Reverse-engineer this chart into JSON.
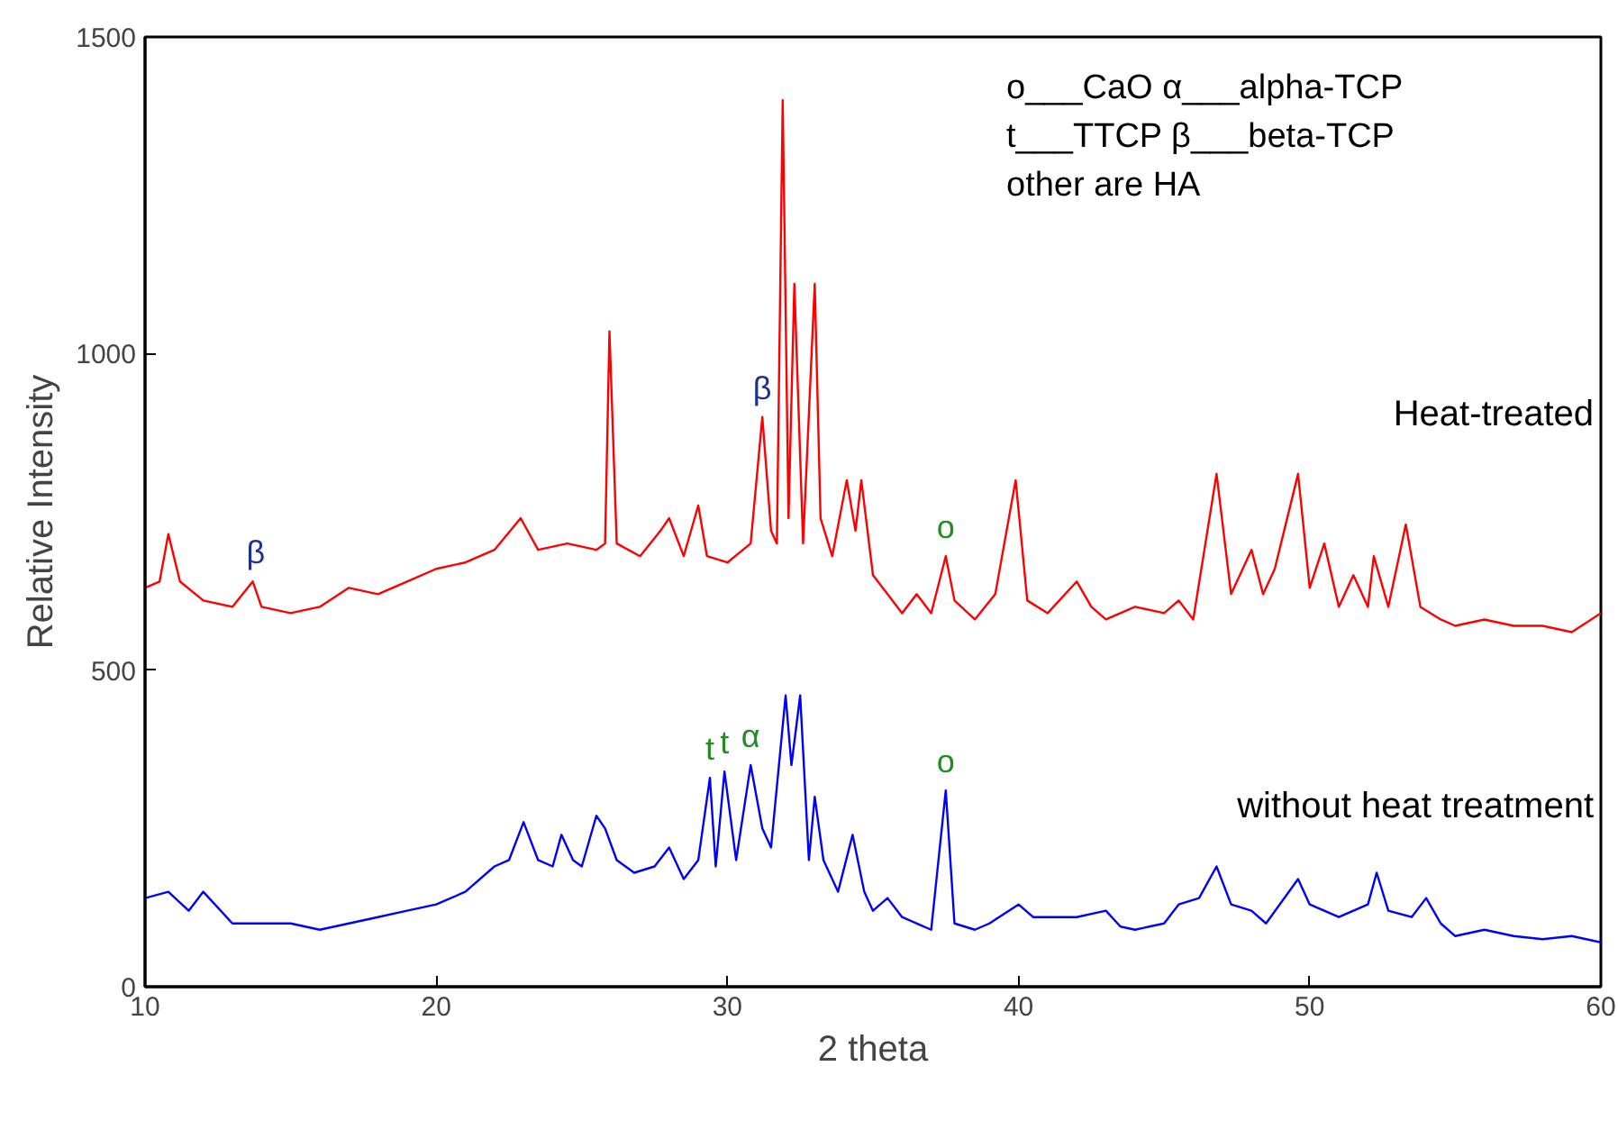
{
  "chart_data": {
    "type": "line",
    "xlabel": "2 theta",
    "ylabel": "Relative Intensity",
    "xlim": [
      10,
      60
    ],
    "ylim": [
      0,
      1500
    ],
    "xticks": [
      10,
      20,
      30,
      40,
      50,
      60
    ],
    "yticks": [
      0,
      500,
      1000,
      1500
    ],
    "grid": false,
    "legend": false,
    "series": [
      {
        "name": "Heat-treated",
        "color": "#ff0000",
        "x": [
          10,
          10.5,
          10.8,
          11.2,
          12,
          13,
          13.7,
          14,
          15,
          16,
          17,
          18,
          19,
          20,
          21,
          22,
          22.9,
          23.5,
          24.5,
          25.5,
          25.8,
          25.95,
          26.2,
          27,
          27.7,
          28,
          28.5,
          29,
          29.3,
          30,
          30.8,
          31.2,
          31.5,
          31.7,
          31.9,
          32.1,
          32.3,
          32.6,
          33,
          33.2,
          33.6,
          34.1,
          34.4,
          34.6,
          35,
          35.5,
          36,
          36.5,
          37,
          37.5,
          37.8,
          38.5,
          39.2,
          39.9,
          40.3,
          41,
          42,
          42.5,
          43,
          44,
          45,
          45.5,
          46,
          46.8,
          47.3,
          48,
          48.4,
          48.8,
          49.6,
          50,
          50.5,
          51,
          51.5,
          52,
          52.2,
          52.7,
          53.3,
          53.8,
          54.5,
          55,
          56,
          57,
          58,
          59,
          60
        ],
        "values": [
          630,
          640,
          715,
          640,
          610,
          600,
          640,
          600,
          590,
          600,
          630,
          620,
          640,
          660,
          670,
          690,
          740,
          690,
          700,
          690,
          700,
          1035,
          700,
          680,
          720,
          740,
          680,
          760,
          680,
          670,
          700,
          900,
          720,
          700,
          1400,
          740,
          1110,
          700,
          1110,
          740,
          680,
          800,
          720,
          800,
          650,
          620,
          590,
          620,
          590,
          680,
          610,
          580,
          620,
          800,
          610,
          590,
          640,
          600,
          580,
          600,
          590,
          610,
          580,
          810,
          620,
          690,
          620,
          660,
          810,
          630,
          700,
          600,
          650,
          600,
          680,
          600,
          730,
          600,
          580,
          570,
          580,
          570,
          570,
          560,
          590
        ]
      },
      {
        "name": "without heat treatment",
        "color": "#0000ff",
        "x": [
          10,
          10.8,
          11.5,
          12,
          13,
          14,
          15,
          16,
          17,
          18,
          19,
          20,
          21,
          22,
          22.5,
          23,
          23.5,
          24,
          24.3,
          24.7,
          25,
          25.5,
          25.8,
          26.2,
          26.8,
          27.5,
          28,
          28.5,
          29,
          29.4,
          29.6,
          29.9,
          30.3,
          30.8,
          31.2,
          31.5,
          32,
          32.2,
          32.5,
          32.8,
          33,
          33.3,
          33.8,
          34.3,
          34.7,
          35,
          35.5,
          36,
          37,
          37.5,
          37.8,
          38.5,
          39,
          40,
          40.5,
          41,
          42,
          43,
          43.5,
          44,
          45,
          45.5,
          46.2,
          46.8,
          47.3,
          48,
          48.5,
          49.6,
          50,
          51,
          52,
          52.3,
          52.7,
          53.5,
          54,
          54.5,
          55,
          56,
          57,
          58,
          59,
          60
        ],
        "values": [
          140,
          150,
          120,
          150,
          100,
          100,
          100,
          90,
          100,
          110,
          120,
          130,
          150,
          190,
          200,
          260,
          200,
          190,
          240,
          200,
          190,
          270,
          250,
          200,
          180,
          190,
          220,
          170,
          200,
          330,
          190,
          340,
          200,
          350,
          250,
          220,
          460,
          350,
          460,
          200,
          300,
          200,
          150,
          240,
          150,
          120,
          140,
          110,
          90,
          310,
          100,
          90,
          100,
          130,
          110,
          110,
          110,
          120,
          95,
          90,
          100,
          130,
          140,
          190,
          130,
          120,
          100,
          170,
          130,
          110,
          130,
          180,
          120,
          110,
          140,
          100,
          80,
          90,
          80,
          75,
          80,
          70
        ]
      }
    ],
    "annotations": [
      "o___CaO  α___alpha-TCP",
      "t___TTCP β___beta-TCP",
      "other are HA",
      {
        "text": "β",
        "x": 13.8,
        "y": 640
      },
      {
        "text": "β",
        "x": 31.2,
        "y": 900
      },
      {
        "text": "o",
        "x": 37.5,
        "y": 680
      },
      {
        "text": "t",
        "x": 29.4,
        "y": 330
      },
      {
        "text": "t",
        "x": 29.9,
        "y": 340
      },
      {
        "text": "α",
        "x": 30.8,
        "y": 350
      },
      {
        "text": "o",
        "x": 37.5,
        "y": 310
      }
    ]
  }
}
